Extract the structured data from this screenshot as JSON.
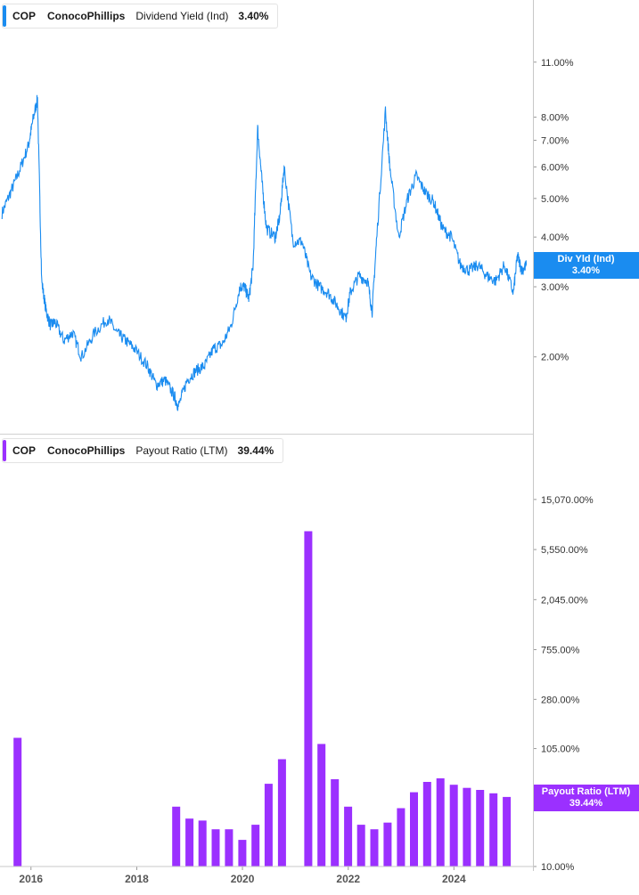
{
  "colors": {
    "dividend": "#1a8cf0",
    "payout": "#9b30ff"
  },
  "legend_top": {
    "ticker": "COP",
    "company": "ConocoPhillips",
    "metric": "Dividend Yield (Ind)",
    "value": "3.40%"
  },
  "legend_bottom": {
    "ticker": "COP",
    "company": "ConocoPhillips",
    "metric": "Payout Ratio (LTM)",
    "value": "39.44%"
  },
  "flag_top": {
    "label": "Div Yld (Ind)",
    "value": "3.40%"
  },
  "flag_bottom": {
    "label": "Payout Ratio (LTM)",
    "value": "39.44%"
  },
  "chart_data": [
    {
      "type": "line",
      "series_name": "Dividend Yield (Ind)",
      "y_scale": "log",
      "y_ticks": [
        {
          "value": 11,
          "label": "11.00%"
        },
        {
          "value": 8,
          "label": "8.00%"
        },
        {
          "value": 7,
          "label": "7.00%"
        },
        {
          "value": 6,
          "label": "6.00%"
        },
        {
          "value": 5,
          "label": "5.00%"
        },
        {
          "value": 4,
          "label": "4.00%"
        },
        {
          "value": 3,
          "label": "3.00%"
        },
        {
          "value": 2,
          "label": "2.00%"
        }
      ],
      "ylim": [
        1.4,
        13.5
      ],
      "xlim": [
        "2015-06-01",
        "2025-06-30"
      ],
      "x": [
        "2015-06",
        "2015-08",
        "2015-10",
        "2015-12",
        "2016-01",
        "2016-02",
        "2016-03",
        "2016-04",
        "2016-05",
        "2016-06",
        "2016-08",
        "2016-10",
        "2016-12",
        "2017-03",
        "2017-06",
        "2017-08",
        "2017-10",
        "2017-12",
        "2018-03",
        "2018-05",
        "2018-07",
        "2018-09",
        "2018-10",
        "2018-12",
        "2019-02",
        "2019-04",
        "2019-06",
        "2019-08",
        "2019-10",
        "2019-12",
        "2020-01",
        "2020-02",
        "2020-03",
        "2020-04",
        "2020-05",
        "2020-06",
        "2020-08",
        "2020-09",
        "2020-10",
        "2020-12",
        "2021-02",
        "2021-04",
        "2021-06",
        "2021-08",
        "2021-10",
        "2021-12",
        "2022-01",
        "2022-03",
        "2022-05",
        "2022-06",
        "2022-07",
        "2022-09",
        "2022-10",
        "2022-12",
        "2023-02",
        "2023-04",
        "2023-06",
        "2023-08",
        "2023-10",
        "2023-12",
        "2024-02",
        "2024-04",
        "2024-06",
        "2024-08",
        "2024-10",
        "2024-12",
        "2025-02",
        "2025-03",
        "2025-04",
        "2025-05"
      ],
      "y": [
        4.6,
        5.2,
        5.9,
        6.8,
        7.9,
        8.9,
        3.1,
        2.6,
        2.4,
        2.45,
        2.2,
        2.3,
        2.0,
        2.3,
        2.5,
        2.3,
        2.2,
        2.1,
        1.9,
        1.7,
        1.75,
        1.6,
        1.5,
        1.75,
        1.85,
        1.9,
        2.1,
        2.15,
        2.4,
        3.0,
        3.0,
        2.8,
        3.4,
        7.5,
        5.5,
        4.2,
        4.0,
        4.5,
        6.0,
        3.9,
        3.9,
        3.2,
        3.0,
        2.9,
        2.7,
        2.5,
        2.9,
        3.2,
        3.1,
        2.6,
        3.9,
        8.3,
        6.0,
        4.0,
        5.0,
        5.7,
        5.2,
        4.9,
        4.2,
        4.0,
        3.4,
        3.3,
        3.4,
        3.2,
        3.1,
        3.4,
        2.9,
        3.6,
        3.3,
        3.4
      ],
      "y_unit": "%"
    },
    {
      "type": "bar",
      "series_name": "Payout Ratio (LTM)",
      "y_scale": "log",
      "y_ticks": [
        {
          "value": 15070,
          "label": "15,070.00%"
        },
        {
          "value": 5550,
          "label": "5,550.00%"
        },
        {
          "value": 2045,
          "label": "2,045.00%"
        },
        {
          "value": 755,
          "label": "755.00%"
        },
        {
          "value": 280,
          "label": "280.00%"
        },
        {
          "value": 105,
          "label": "105.00%"
        },
        {
          "value": 10,
          "label": "10.00%"
        }
      ],
      "ylim": [
        10,
        27000
      ],
      "xlim": [
        "2015-06-01",
        "2025-06-30"
      ],
      "x_ticks": [
        {
          "date": "2016-01-01",
          "label": "2016"
        },
        {
          "date": "2018-01-01",
          "label": "2018"
        },
        {
          "date": "2020-01-01",
          "label": "2020"
        },
        {
          "date": "2022-01-01",
          "label": "2022"
        },
        {
          "date": "2024-01-01",
          "label": "2024"
        }
      ],
      "x": [
        "2015-09-30",
        "2018-09-30",
        "2018-12-31",
        "2019-03-31",
        "2019-06-30",
        "2019-09-30",
        "2019-12-31",
        "2020-03-31",
        "2020-06-30",
        "2020-09-30",
        "2021-03-31",
        "2021-06-30",
        "2021-09-30",
        "2021-12-31",
        "2022-03-31",
        "2022-06-30",
        "2022-09-30",
        "2022-12-31",
        "2023-03-31",
        "2023-06-30",
        "2023-09-30",
        "2023-12-31",
        "2024-03-31",
        "2024-06-30",
        "2024-09-30",
        "2024-12-31"
      ],
      "values": [
        130,
        33,
        26,
        25,
        21,
        21,
        17,
        23,
        52,
        85,
        8000,
        115,
        57,
        33,
        23,
        21,
        24,
        32,
        44,
        54,
        58,
        51,
        48,
        46,
        43,
        40
      ],
      "y_unit": "%"
    }
  ]
}
